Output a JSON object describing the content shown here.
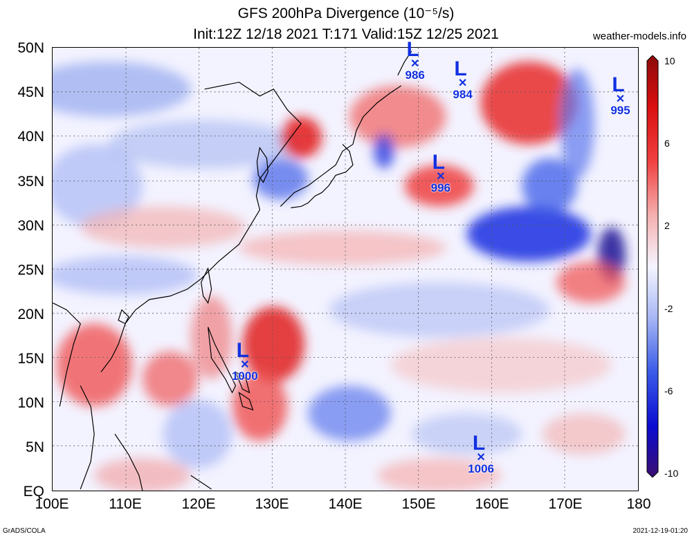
{
  "title_line1": "GFS 200hPa Divergence (10⁻⁵/s)",
  "title_line2": "Init:12Z 12/18 2021 T:171 Valid:15Z 12/25 2021",
  "site": "weather-models.info",
  "footer_left": "GrADS/COLA",
  "footer_right": "2021-12-19-01:20",
  "lat_labels": [
    "50N",
    "45N",
    "40N",
    "35N",
    "30N",
    "25N",
    "20N",
    "15N",
    "10N",
    "5N",
    "EQ"
  ],
  "lon_labels": [
    "100E",
    "110E",
    "120E",
    "130E",
    "140E",
    "150E",
    "160E",
    "170E",
    "180"
  ],
  "colorbar": {
    "labels": [
      "10",
      "6",
      "2",
      "-2",
      "-6",
      "-10"
    ],
    "colors": [
      "#3b0f70",
      "#0b0bd0",
      "#3a5be8",
      "#a9b8f5",
      "#f5f5ff",
      "#f5b0b0",
      "#f04040",
      "#d90f0f",
      "#8c0a0a"
    ]
  },
  "lows": [
    {
      "label": "L",
      "pressure": "986",
      "lon": 149.5,
      "lat": 47.5
    },
    {
      "label": "L",
      "pressure": "984",
      "lon": 156.0,
      "lat": 45.3
    },
    {
      "label": "L",
      "pressure": "995",
      "lon": 177.5,
      "lat": 43.5
    },
    {
      "label": "L",
      "pressure": "996",
      "lon": 153.0,
      "lat": 34.8
    },
    {
      "label": "L",
      "pressure": "1000",
      "lon": 126.3,
      "lat": 13.6
    },
    {
      "label": "L",
      "pressure": "1006",
      "lon": 158.5,
      "lat": 3.2
    }
  ]
}
